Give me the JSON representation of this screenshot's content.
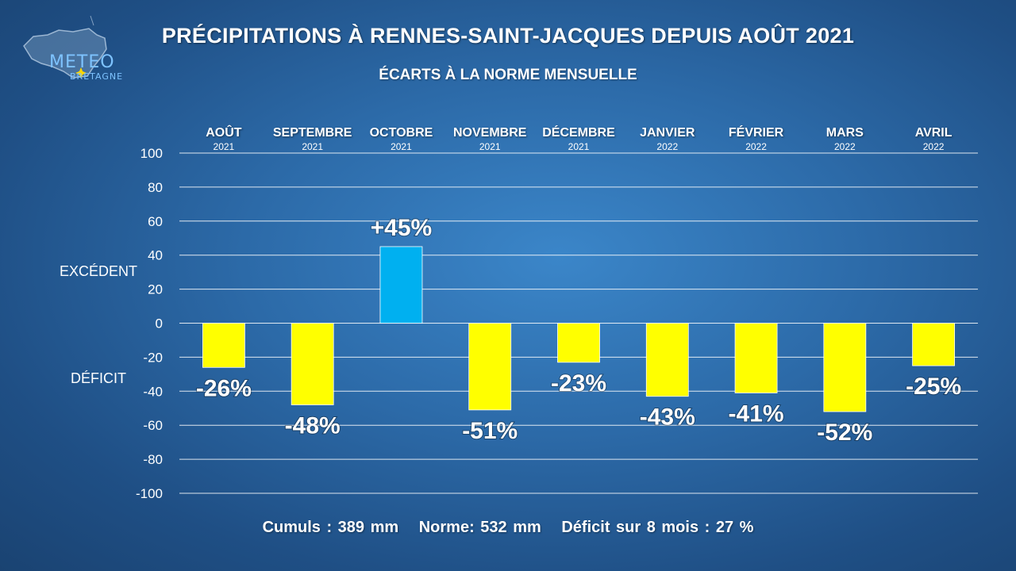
{
  "logo": {
    "text": "METEO",
    "sub": "BRETAGNE"
  },
  "title": "PRÉCIPITATIONS À RENNES-SAINT-JACQUES DEPUIS AOÛT 2021",
  "subtitle": "ÉCARTS À LA NORME MENSUELLE",
  "labels": {
    "excedent": "EXCÉDENT",
    "deficit": "DÉFICIT"
  },
  "footer": {
    "cumuls": "Cumuls : 389 mm",
    "norme": "Norme: 532 mm",
    "deficit": "Déficit sur 8 mois : 27 %"
  },
  "colors": {
    "positive": "#00b0f0",
    "negative": "#ffff00",
    "grid": "#ffffff"
  },
  "chart_data": {
    "type": "bar",
    "categories": [
      "AOÛT",
      "SEPTEMBRE",
      "OCTOBRE",
      "NOVEMBRE",
      "DÉCEMBRE",
      "JANVIER",
      "FÉVRIER",
      "MARS",
      "AVRIL"
    ],
    "years": [
      "2021",
      "2021",
      "2021",
      "2021",
      "2021",
      "2022",
      "2022",
      "2022",
      "2022"
    ],
    "values": [
      -26,
      -48,
      45,
      -51,
      -23,
      -43,
      -41,
      -52,
      -25
    ],
    "value_labels": [
      "-26%",
      "-48%",
      "+45%",
      "-51%",
      "-23%",
      "-43%",
      "-41%",
      "-52%",
      "-25%"
    ],
    "title": "PRÉCIPITATIONS À RENNES-SAINT-JACQUES DEPUIS AOÛT 2021",
    "subtitle": "ÉCARTS À LA NORME MENSUELLE",
    "ylim": [
      -100,
      100
    ],
    "yticks": [
      100,
      80,
      60,
      40,
      20,
      0,
      -20,
      -40,
      -60,
      -80,
      -100
    ],
    "grid": true,
    "xaxis_position": "top"
  }
}
